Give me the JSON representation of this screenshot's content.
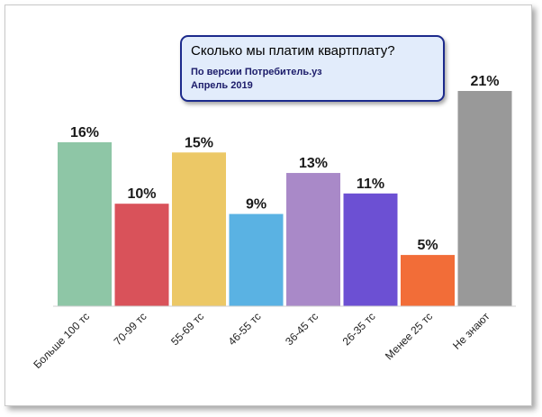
{
  "chart_data": {
    "type": "bar",
    "title": "Сколько мы платим квартплату?",
    "subtitle": [
      "По версии Потребитель.уз",
      "Апрель 2019"
    ],
    "categories": [
      "Больше 100 тс",
      "70-99 тс",
      "55-69 тс",
      "46-55 тс",
      "36-45 тс",
      "26-35 тс",
      "Менее 25 тс",
      "Не знают"
    ],
    "values": [
      16,
      10,
      15,
      9,
      13,
      11,
      5,
      21
    ],
    "value_labels": [
      "16%",
      "10%",
      "15%",
      "9%",
      "13%",
      "11%",
      "5%",
      "21%"
    ],
    "colors": [
      "#8ec6a6",
      "#d9525a",
      "#ecc866",
      "#5ab2e3",
      "#a989c8",
      "#6c50d3",
      "#f26d38",
      "#999999"
    ],
    "unit": "%",
    "ylim": [
      0,
      21
    ],
    "grid": false,
    "legend": "none"
  }
}
